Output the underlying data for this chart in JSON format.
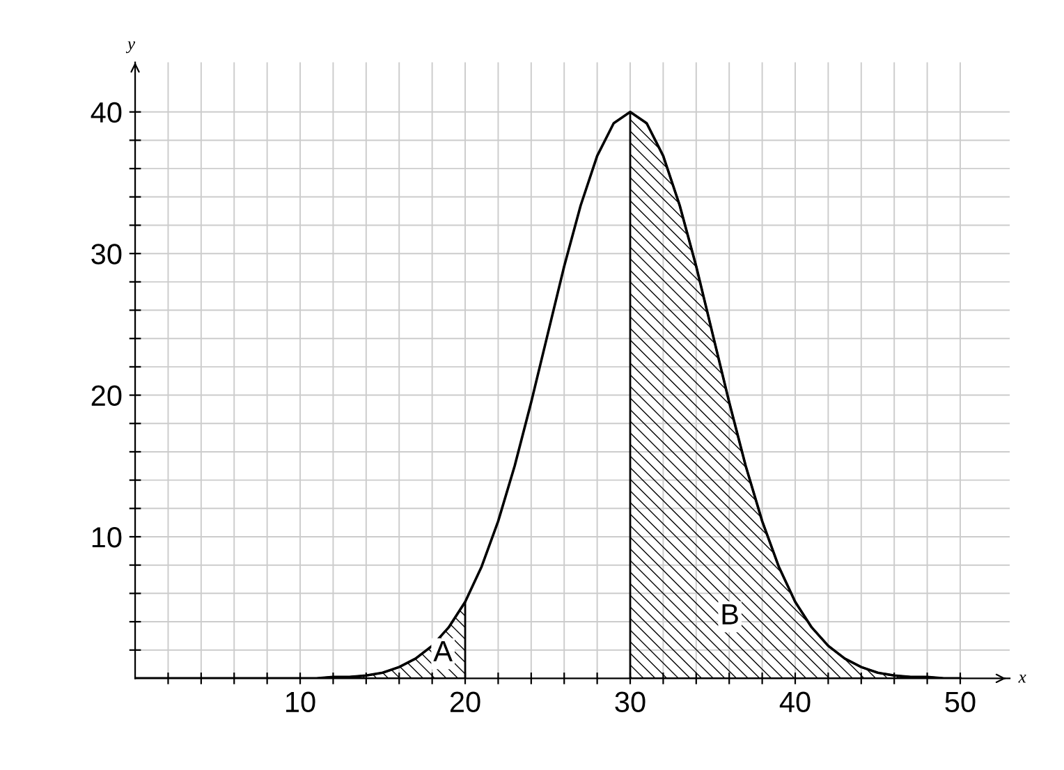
{
  "chart_data": {
    "type": "line",
    "xlabel": "x",
    "ylabel": "y",
    "xlim": [
      0,
      53
    ],
    "ylim": [
      0,
      43.5
    ],
    "xticks": [
      {
        "value": 2,
        "label": null
      },
      {
        "value": 4,
        "label": null
      },
      {
        "value": 6,
        "label": null
      },
      {
        "value": 8,
        "label": null
      },
      10,
      {
        "value": 12,
        "label": null
      },
      {
        "value": 14,
        "label": null
      },
      {
        "value": 16,
        "label": null
      },
      {
        "value": 18,
        "label": null
      },
      20,
      {
        "value": 22,
        "label": null
      },
      {
        "value": 24,
        "label": null
      },
      {
        "value": 26,
        "label": null
      },
      {
        "value": 28,
        "label": null
      },
      30,
      {
        "value": 32,
        "label": null
      },
      {
        "value": 34,
        "label": null
      },
      {
        "value": 36,
        "label": null
      },
      {
        "value": 38,
        "label": null
      },
      40,
      {
        "value": 42,
        "label": null
      },
      {
        "value": 44,
        "label": null
      },
      {
        "value": 46,
        "label": null
      },
      {
        "value": 48,
        "label": null
      },
      50
    ],
    "yticks": [
      {
        "value": 2,
        "label": null
      },
      {
        "value": 4,
        "label": null
      },
      {
        "value": 6,
        "label": null
      },
      {
        "value": 8,
        "label": null
      },
      10,
      {
        "value": 12,
        "label": null
      },
      {
        "value": 14,
        "label": null
      },
      {
        "value": 16,
        "label": null
      },
      {
        "value": 18,
        "label": null
      },
      20,
      {
        "value": 22,
        "label": null
      },
      {
        "value": 24,
        "label": null
      },
      {
        "value": 26,
        "label": null
      },
      {
        "value": 28,
        "label": null
      },
      30,
      {
        "value": 32,
        "label": null
      },
      {
        "value": 34,
        "label": null
      },
      {
        "value": 36,
        "label": null
      },
      {
        "value": 38,
        "label": null
      },
      40
    ],
    "grid": true,
    "series": [
      {
        "type": "area",
        "color": "#000000",
        "x": [
          10,
          11,
          12,
          13,
          14,
          15,
          16,
          17,
          18,
          19,
          20
        ],
        "values": [
          0.0,
          0.0,
          0.1,
          0.1,
          0.2,
          0.4,
          0.8,
          1.4,
          2.3,
          3.6,
          5.4
        ]
      },
      {
        "type": "area",
        "color": "#000000",
        "x": [
          30,
          31,
          32,
          33,
          34,
          35,
          36,
          37,
          38,
          39,
          40,
          41,
          42,
          43,
          44,
          45,
          46,
          47,
          48,
          49,
          50
        ],
        "values": [
          40.0,
          39.2,
          36.9,
          33.4,
          29.1,
          24.3,
          19.5,
          15.0,
          11.1,
          7.9,
          5.4,
          3.6,
          2.3,
          1.4,
          0.8,
          0.4,
          0.2,
          0.1,
          0.1,
          0.0,
          0.0
        ]
      },
      {
        "color": "#000000",
        "x": [
          0,
          5,
          8,
          10,
          11,
          12,
          13,
          14,
          15,
          16,
          17,
          18,
          19,
          20,
          21,
          22,
          23,
          24,
          25,
          26,
          27,
          28,
          29,
          30,
          31,
          32,
          33,
          34,
          35,
          36,
          37,
          38,
          39,
          40,
          41,
          42,
          43,
          44,
          45,
          46,
          47,
          48,
          49,
          50
        ],
        "values": [
          0.0,
          0.0,
          0.0,
          0.0,
          0.0,
          0.1,
          0.1,
          0.2,
          0.4,
          0.8,
          1.4,
          2.3,
          3.6,
          5.4,
          7.9,
          11.1,
          15.0,
          19.5,
          24.3,
          29.1,
          33.4,
          36.9,
          39.2,
          40.0,
          39.2,
          36.9,
          33.4,
          29.1,
          24.3,
          19.5,
          15.0,
          11.1,
          7.9,
          5.4,
          3.6,
          2.3,
          1.4,
          0.8,
          0.4,
          0.2,
          0.1,
          0.1,
          0.0,
          0.0
        ]
      }
    ],
    "annotations": [
      "A",
      "B"
    ]
  }
}
